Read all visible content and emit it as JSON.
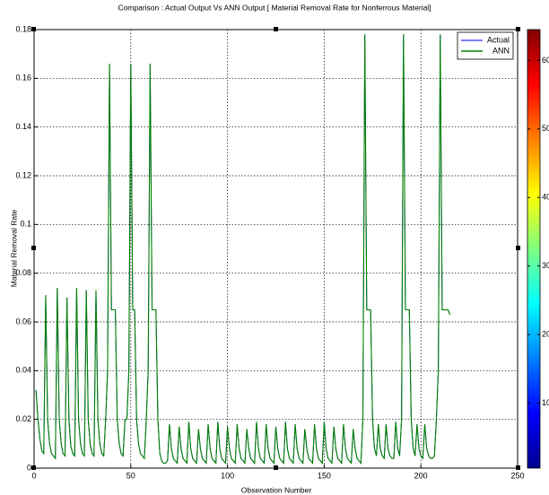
{
  "chart_data": {
    "type": "line",
    "title": "Comparison : Actual Output Vs ANN Output [ Material Removal Rate for Nonferrous Material]",
    "x_label": "Observation Number",
    "y_label": "Material Removal Rate",
    "xlim": [
      0,
      250
    ],
    "xticks": [
      0,
      50,
      100,
      150,
      200,
      250
    ],
    "ylim": [
      0,
      0.18
    ],
    "yticks": [
      0,
      0.02,
      0.04,
      0.06,
      0.08,
      0.1,
      0.12,
      0.14,
      0.16,
      0.18
    ],
    "grid": true,
    "legend": "top-right",
    "colorbar": {
      "lim": [
        0.5,
        64.5
      ],
      "ticks": [
        10,
        20,
        30,
        40,
        50,
        60
      ]
    },
    "x": [
      1,
      2,
      3,
      4,
      5,
      6,
      7,
      8,
      9,
      10,
      11,
      12,
      13,
      14,
      15,
      16,
      17,
      18,
      19,
      20,
      21,
      22,
      23,
      24,
      25,
      26,
      27,
      28,
      29,
      30,
      31,
      32,
      33,
      34,
      35,
      36,
      37,
      38,
      39,
      40,
      41,
      42,
      43,
      44,
      45,
      46,
      47,
      48,
      49,
      50,
      51,
      52,
      53,
      54,
      55,
      56,
      57,
      58,
      59,
      60,
      61,
      62,
      63,
      64,
      65,
      66,
      67,
      68,
      69,
      70,
      71,
      72,
      73,
      74,
      75,
      76,
      77,
      78,
      79,
      80,
      81,
      82,
      83,
      84,
      85,
      86,
      87,
      88,
      89,
      90,
      91,
      92,
      93,
      94,
      95,
      96,
      97,
      98,
      99,
      100,
      101,
      102,
      103,
      104,
      105,
      106,
      107,
      108,
      109,
      110,
      111,
      112,
      113,
      114,
      115,
      116,
      117,
      118,
      119,
      120,
      121,
      122,
      123,
      124,
      125,
      126,
      127,
      128,
      129,
      130,
      131,
      132,
      133,
      134,
      135,
      136,
      137,
      138,
      139,
      140,
      141,
      142,
      143,
      144,
      145,
      146,
      147,
      148,
      149,
      150,
      151,
      152,
      153,
      154,
      155,
      156,
      157,
      158,
      159,
      160,
      161,
      162,
      163,
      164,
      165,
      166,
      167,
      168,
      169,
      170,
      171,
      172,
      173,
      174,
      175,
      176,
      177,
      178,
      179,
      180,
      181,
      182,
      183,
      184,
      185,
      186,
      187,
      188,
      189,
      190,
      191,
      192,
      193,
      194,
      195,
      196,
      197,
      198,
      199,
      200,
      201,
      202,
      203,
      204,
      205,
      206,
      207,
      208,
      209,
      210,
      211,
      212,
      213,
      214,
      215
    ],
    "series": [
      {
        "name": "Actual",
        "color": "#0000ff",
        "values": [
          0.032,
          0.02,
          0.012,
          0.007,
          0.006,
          0.071,
          0.02,
          0.01,
          0.006,
          0.005,
          0.004,
          0.074,
          0.02,
          0.01,
          0.006,
          0.005,
          0.07,
          0.02,
          0.009,
          0.006,
          0.005,
          0.074,
          0.02,
          0.01,
          0.006,
          0.005,
          0.073,
          0.02,
          0.01,
          0.006,
          0.005,
          0.073,
          0.02,
          0.01,
          0.006,
          0.005,
          0.02,
          0.04,
          0.166,
          0.065,
          0.065,
          0.065,
          0.02,
          0.01,
          0.006,
          0.005,
          0.02,
          0.02,
          0.04,
          0.166,
          0.065,
          0.065,
          0.02,
          0.01,
          0.006,
          0.005,
          0.004,
          0.02,
          0.04,
          0.166,
          0.065,
          0.065,
          0.065,
          0.02,
          0.006,
          0.003,
          0.002,
          0.002,
          0.003,
          0.018,
          0.008,
          0.004,
          0.003,
          0.002,
          0.017,
          0.008,
          0.004,
          0.003,
          0.002,
          0.019,
          0.008,
          0.004,
          0.003,
          0.002,
          0.016,
          0.008,
          0.004,
          0.003,
          0.002,
          0.018,
          0.008,
          0.004,
          0.003,
          0.002,
          0.019,
          0.008,
          0.004,
          0.003,
          0.002,
          0.017,
          0.008,
          0.004,
          0.003,
          0.002,
          0.018,
          0.008,
          0.004,
          0.003,
          0.002,
          0.016,
          0.008,
          0.004,
          0.003,
          0.002,
          0.019,
          0.008,
          0.004,
          0.003,
          0.002,
          0.018,
          0.008,
          0.004,
          0.003,
          0.002,
          0.017,
          0.008,
          0.004,
          0.003,
          0.002,
          0.019,
          0.008,
          0.004,
          0.003,
          0.002,
          0.018,
          0.008,
          0.004,
          0.003,
          0.002,
          0.016,
          0.008,
          0.004,
          0.003,
          0.002,
          0.018,
          0.008,
          0.004,
          0.003,
          0.002,
          0.019,
          0.008,
          0.004,
          0.003,
          0.002,
          0.017,
          0.008,
          0.004,
          0.003,
          0.002,
          0.018,
          0.008,
          0.004,
          0.003,
          0.002,
          0.016,
          0.008,
          0.004,
          0.003,
          0.002,
          0.02,
          0.178,
          0.065,
          0.065,
          0.065,
          0.02,
          0.008,
          0.005,
          0.018,
          0.008,
          0.005,
          0.004,
          0.018,
          0.008,
          0.005,
          0.004,
          0.004,
          0.019,
          0.008,
          0.005,
          0.02,
          0.178,
          0.065,
          0.065,
          0.065,
          0.02,
          0.008,
          0.005,
          0.018,
          0.008,
          0.005,
          0.004,
          0.018,
          0.008,
          0.005,
          0.004,
          0.004,
          0.005,
          0.02,
          0.04,
          0.178,
          0.065,
          0.065,
          0.065,
          0.065,
          0.063
        ]
      },
      {
        "name": "ANN",
        "color": "#008000",
        "values": [
          0.032,
          0.02,
          0.012,
          0.007,
          0.006,
          0.071,
          0.02,
          0.01,
          0.006,
          0.005,
          0.004,
          0.074,
          0.02,
          0.01,
          0.006,
          0.005,
          0.07,
          0.02,
          0.009,
          0.006,
          0.005,
          0.074,
          0.02,
          0.01,
          0.006,
          0.005,
          0.073,
          0.02,
          0.01,
          0.006,
          0.005,
          0.073,
          0.02,
          0.01,
          0.006,
          0.005,
          0.02,
          0.04,
          0.166,
          0.065,
          0.065,
          0.065,
          0.02,
          0.01,
          0.006,
          0.005,
          0.02,
          0.02,
          0.04,
          0.166,
          0.065,
          0.065,
          0.02,
          0.01,
          0.006,
          0.005,
          0.004,
          0.02,
          0.04,
          0.166,
          0.065,
          0.065,
          0.065,
          0.02,
          0.006,
          0.003,
          0.002,
          0.002,
          0.003,
          0.018,
          0.008,
          0.004,
          0.003,
          0.002,
          0.017,
          0.008,
          0.004,
          0.003,
          0.002,
          0.019,
          0.008,
          0.004,
          0.003,
          0.002,
          0.016,
          0.008,
          0.004,
          0.003,
          0.002,
          0.018,
          0.008,
          0.004,
          0.003,
          0.002,
          0.019,
          0.008,
          0.004,
          0.003,
          0.002,
          0.017,
          0.008,
          0.004,
          0.003,
          0.002,
          0.018,
          0.008,
          0.004,
          0.003,
          0.002,
          0.016,
          0.008,
          0.004,
          0.003,
          0.002,
          0.019,
          0.008,
          0.004,
          0.003,
          0.002,
          0.018,
          0.008,
          0.004,
          0.003,
          0.002,
          0.017,
          0.008,
          0.004,
          0.003,
          0.002,
          0.019,
          0.008,
          0.004,
          0.003,
          0.002,
          0.018,
          0.008,
          0.004,
          0.003,
          0.002,
          0.016,
          0.008,
          0.004,
          0.003,
          0.002,
          0.018,
          0.008,
          0.004,
          0.003,
          0.002,
          0.019,
          0.008,
          0.004,
          0.003,
          0.002,
          0.017,
          0.008,
          0.004,
          0.003,
          0.002,
          0.018,
          0.008,
          0.004,
          0.003,
          0.002,
          0.016,
          0.008,
          0.004,
          0.003,
          0.002,
          0.02,
          0.178,
          0.065,
          0.065,
          0.065,
          0.02,
          0.008,
          0.005,
          0.018,
          0.008,
          0.005,
          0.004,
          0.018,
          0.008,
          0.005,
          0.004,
          0.004,
          0.019,
          0.008,
          0.005,
          0.02,
          0.178,
          0.065,
          0.065,
          0.065,
          0.02,
          0.008,
          0.005,
          0.018,
          0.008,
          0.005,
          0.004,
          0.018,
          0.008,
          0.005,
          0.004,
          0.004,
          0.005,
          0.02,
          0.04,
          0.178,
          0.065,
          0.065,
          0.065,
          0.065,
          0.063
        ]
      }
    ]
  }
}
